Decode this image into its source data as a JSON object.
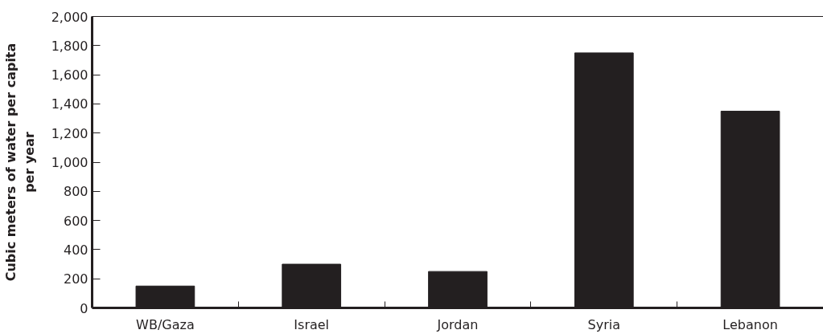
{
  "chart_data": {
    "type": "bar",
    "ylabel": "Cubic meters of water per capita per year",
    "categories": [
      "WB/Gaza",
      "Israel",
      "Jordan",
      "Syria",
      "Lebanon"
    ],
    "values": [
      150,
      300,
      250,
      1750,
      1350
    ],
    "color": "#231f20",
    "ylim": [
      0,
      2000
    ],
    "yticks": [
      0,
      200,
      400,
      600,
      800,
      {
        "value": 1000,
        "label": "1,000"
      },
      {
        "value": 1200,
        "label": "1,200"
      },
      {
        "value": 1400,
        "label": "1,400"
      },
      {
        "value": 1600,
        "label": "1,600"
      },
      {
        "value": 1800,
        "label": "1,800"
      },
      {
        "value": 2000,
        "label": "2,000"
      }
    ],
    "grid": false
  }
}
